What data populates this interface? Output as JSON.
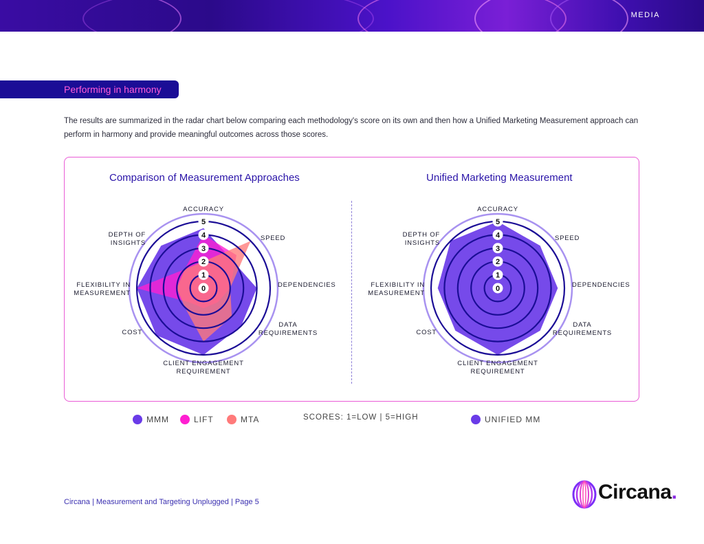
{
  "header": {
    "label": "MEDIA"
  },
  "section": {
    "title": "Performing in harmony"
  },
  "intro": "The results are summarized in the radar chart below comparing each methodology's score on its own and then how a Unified Marketing Measurement approach can perform in harmony and provide meaningful outcomes across those scores.",
  "axes": [
    "ACCURACY",
    "SPEED",
    "DEPENDENCIES",
    "DATA REQUIREMENTS",
    "CLIENT ENGAGEMENT REQUIREMENT",
    "COST",
    "FLEXIBILITY IN MEASUREMENT",
    "DEPTH OF INSIGHTS"
  ],
  "colors": {
    "mmm": "#6a3be8",
    "lift": "#ff1fd1",
    "mta": "#ff7a7a",
    "unified": "#6a3be8",
    "ring": "#1b0d96",
    "outer_ring": "#a892f0"
  },
  "chart_data": [
    {
      "type": "radar",
      "title": "Comparison of Measurement Approaches",
      "axes": [
        "ACCURACY",
        "SPEED",
        "DEPENDENCIES",
        "DATA REQUIREMENTS",
        "CLIENT ENGAGEMENT REQUIREMENT",
        "COST",
        "FLEXIBILITY IN MEASUREMENT",
        "DEPTH OF INSIGHTS"
      ],
      "rlim": [
        0,
        5
      ],
      "ticks": [
        "0",
        "1",
        "2",
        "3",
        "4",
        "5"
      ],
      "series": [
        {
          "name": "MMM",
          "values": [
            4.5,
            3,
            4,
            4,
            5,
            5,
            5,
            4.5
          ]
        },
        {
          "name": "LIFT",
          "values": [
            4,
            3.5,
            2,
            1.5,
            1.5,
            1.5,
            5,
            2
          ]
        },
        {
          "name": "MTA",
          "values": [
            2,
            5,
            2,
            3,
            4,
            2,
            2,
            2
          ]
        }
      ]
    },
    {
      "type": "radar",
      "title": "Unified Marketing Measurement",
      "axes": [
        "ACCURACY",
        "SPEED",
        "DEPENDENCIES",
        "DATA REQUIREMENTS",
        "CLIENT ENGAGEMENT REQUIREMENT",
        "COST",
        "FLEXIBILITY IN MEASUREMENT",
        "DEPTH OF INSIGHTS"
      ],
      "rlim": [
        0,
        5
      ],
      "ticks": [
        "0",
        "1",
        "2",
        "3",
        "4",
        "5"
      ],
      "series": [
        {
          "name": "UNIFIED MM",
          "values": [
            5,
            4.5,
            4.5,
            4.5,
            5,
            4.5,
            4.5,
            5
          ]
        }
      ]
    }
  ],
  "legend_left": [
    {
      "label": "MMM",
      "color": "#6a3be8"
    },
    {
      "label": "LIFT",
      "color": "#ff1fd1"
    },
    {
      "label": "MTA",
      "color": "#ff7a7a"
    }
  ],
  "scores_note": "SCORES: 1=LOW | 5=HIGH",
  "legend_right": {
    "label": "UNIFIED MM",
    "color": "#6a3be8"
  },
  "footer": {
    "text": "Circana | Measurement and Targeting Unplugged | Page 5"
  },
  "logo": {
    "word": "Circana",
    "dot": "."
  }
}
